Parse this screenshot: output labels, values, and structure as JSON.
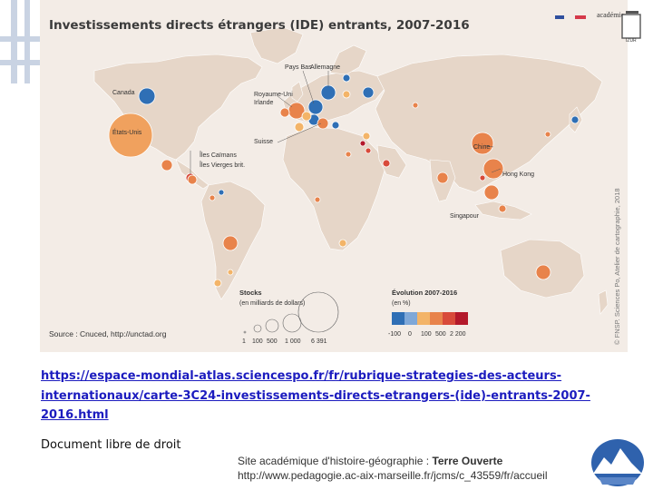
{
  "map": {
    "title": "Investissements directs étrangers (IDE) entrants, 2007-2016",
    "source": "Source : Cnuced, http://unctad.org",
    "credit": "© FNSP. Sciences Po, Atelier de cartographie, 2018",
    "institution": {
      "academie_label": "académie",
      "sub_label": "IZUR"
    },
    "country_labels": {
      "canada": "Canada",
      "usa": "États-Unis",
      "pays_bas": "Pays Bas",
      "allemagne": "Allemagne",
      "royaume_uni": "Royaume-Uni",
      "irlande": "Irlande",
      "suisse": "Suisse",
      "iles_caimans": "Îles Caïmans",
      "iles_vierges": "Îles Vierges brit.",
      "chine": "Chine",
      "hong_kong": "Hong Kong",
      "singapour": "Singapour"
    },
    "legend": {
      "stocks_title": "Stocks",
      "stocks_unit": "(en milliards de dollars)",
      "stocks_values": [
        "1",
        "100",
        "500",
        "1 000",
        "6 391"
      ],
      "evolution_title": "Évolution 2007-2016",
      "evolution_unit": "(en %)",
      "evolution_values": [
        "-100",
        "0",
        "100",
        "500",
        "2 200"
      ],
      "evolution_colors": [
        "#2f6fb5",
        "#7fa8d8",
        "#f3b468",
        "#e8834b",
        "#d84a3a",
        "#b3192b"
      ]
    }
  },
  "document": {
    "url": "https://espace-mondial-atlas.sciencespo.fr/fr/rubrique-strategies-des-acteurs-internationaux/carte-3C24-investissements-directs-etrangers-(ide)-entrants-2007-2016.html",
    "license": "Document libre de droit"
  },
  "footer": {
    "site_prefix": "Site académique d'histoire-géographie : ",
    "site_name": "Terre Ouverte",
    "site_url": "http://www.pedagogie.ac-aix-marseille.fr/jcms/c_43559/fr/accueil"
  }
}
